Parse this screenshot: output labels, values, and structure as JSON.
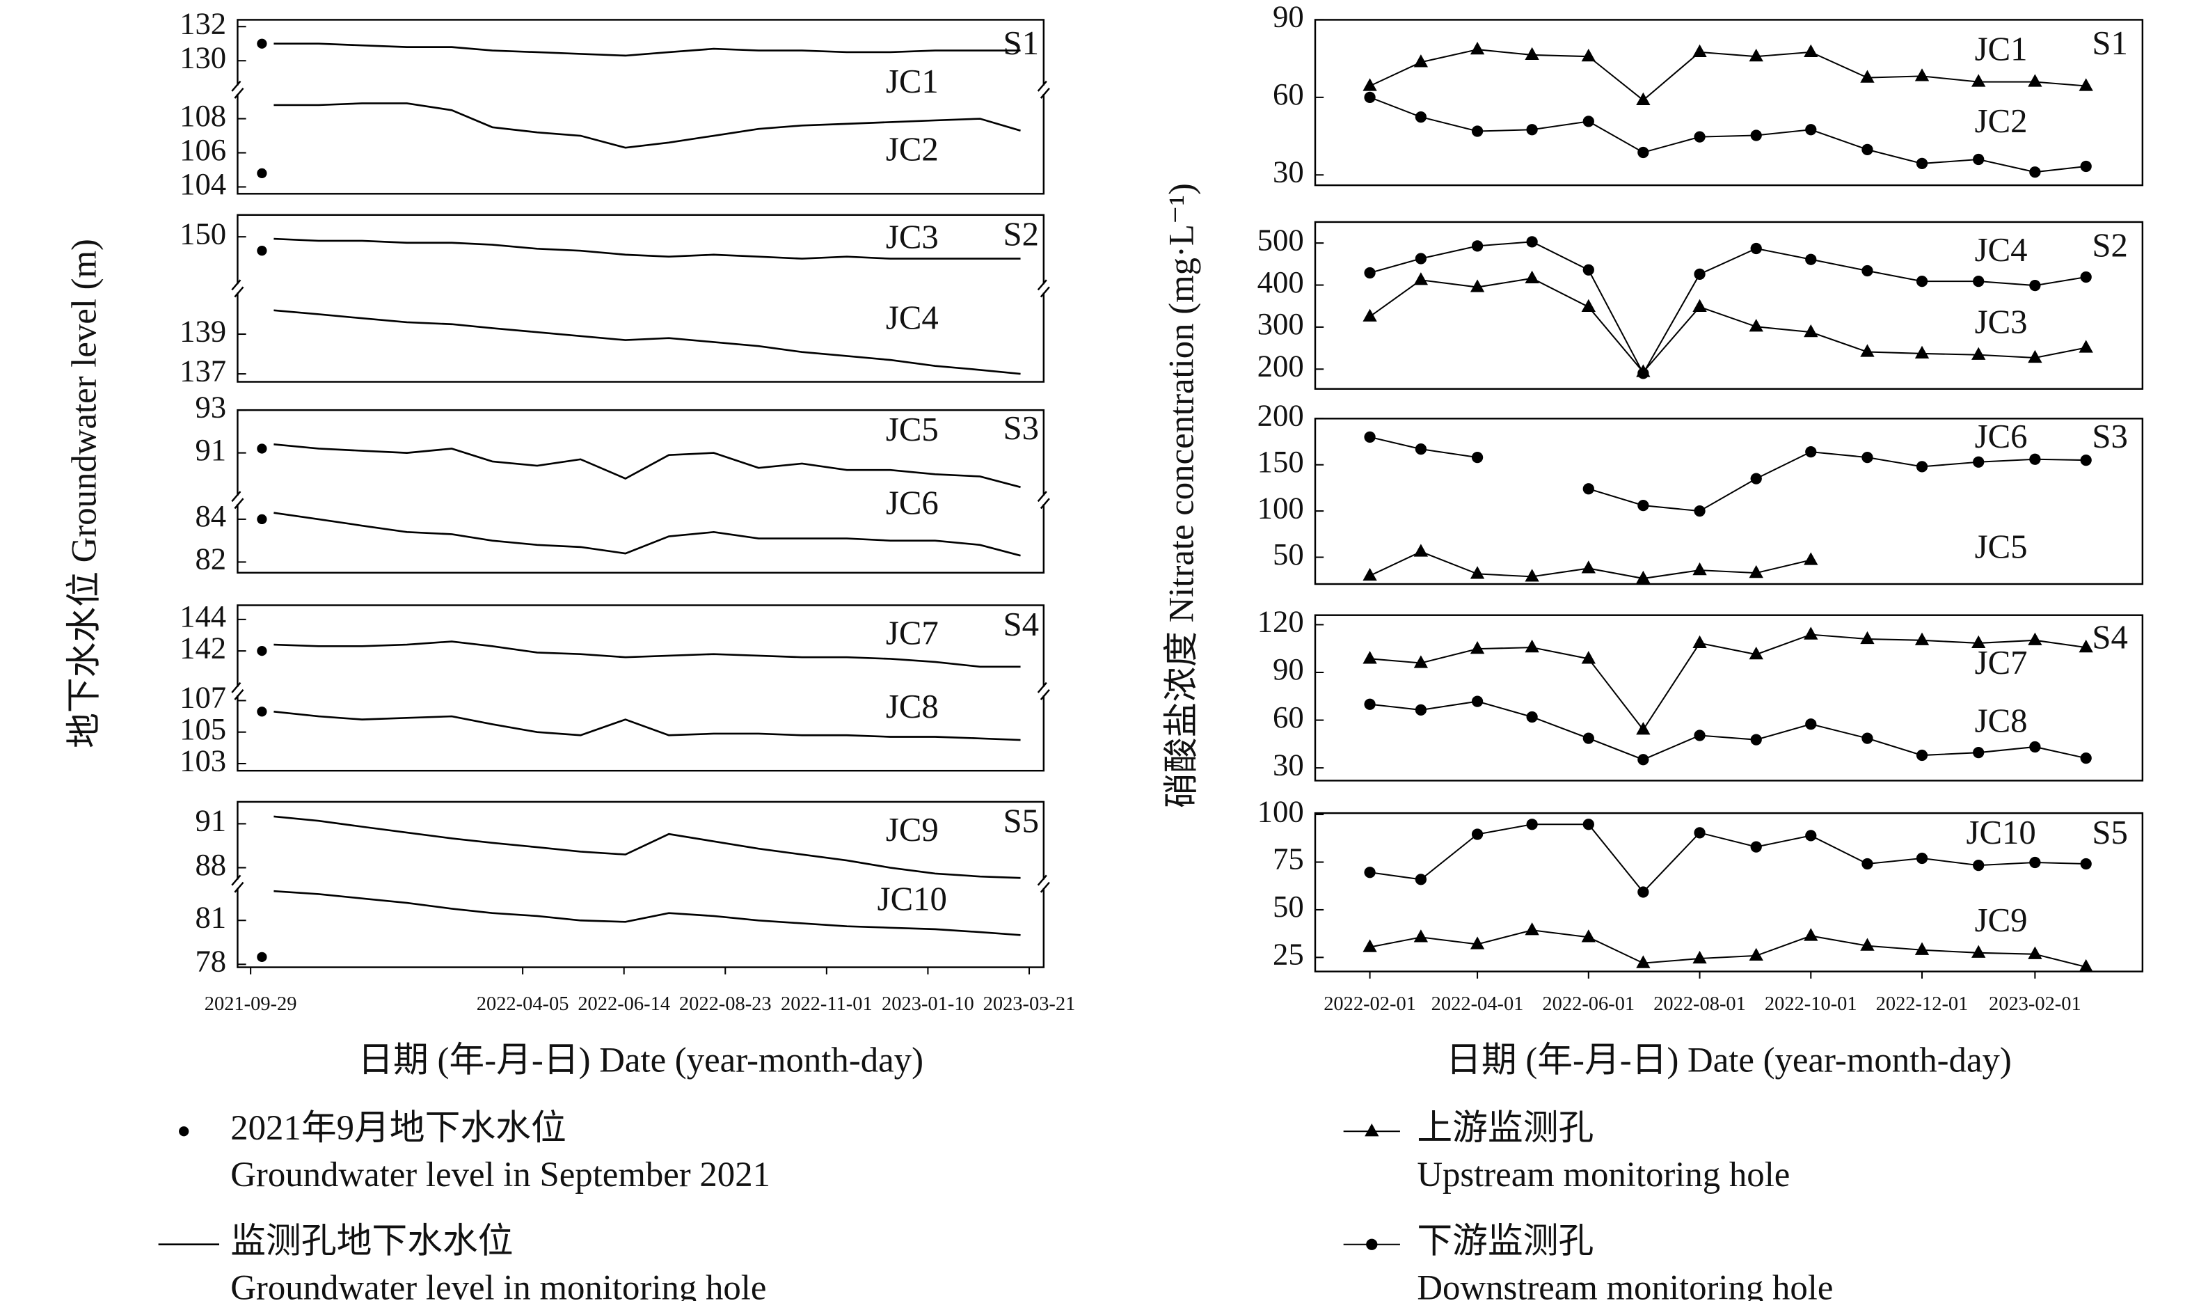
{
  "chart_data": [
    {
      "type": "broken-line",
      "y_label": "地下水水位 Groundwater level (m)",
      "x_label": "日期 (年-月-日) Date (year-month-day)",
      "xlim": [
        "2021-09-20",
        "2023-03-31"
      ],
      "xticks": [
        "2021-09-29",
        "2022-04-05",
        "2022-06-14",
        "2022-08-23",
        "2022-11-01",
        "2023-01-10",
        "2023-03-21"
      ],
      "x": [
        "2021-10-15",
        "2021-11-15",
        "2021-12-15",
        "2022-01-15",
        "2022-02-15",
        "2022-03-15",
        "2022-04-15",
        "2022-05-15",
        "2022-06-15",
        "2022-07-15",
        "2022-08-15",
        "2022-09-15",
        "2022-10-15",
        "2022-11-15",
        "2022-12-15",
        "2023-01-15",
        "2023-02-15",
        "2023-03-15"
      ],
      "color": "#000000",
      "panels": [
        {
          "label": "S1",
          "top": {
            "ylim": [
              128.3,
              132.4
            ],
            "yticks": [
              130,
              132
            ]
          },
          "bottom": {
            "ylim": [
              103.6,
              109.7
            ],
            "yticks": [
              104,
              106,
              108
            ]
          },
          "series": [
            {
              "name": "JC1",
              "segment": "top",
              "sept_2021": 131.0,
              "values": [
                131.0,
                131.0,
                130.9,
                130.8,
                130.8,
                130.6,
                130.5,
                130.4,
                130.3,
                130.5,
                130.7,
                130.6,
                130.6,
                130.5,
                130.5,
                130.6,
                130.6,
                130.6
              ]
            },
            {
              "name": "JC2",
              "segment": "bottom",
              "sept_2021": 104.8,
              "values": [
                108.8,
                108.8,
                108.9,
                108.9,
                108.5,
                107.5,
                107.2,
                107.0,
                106.3,
                106.6,
                107.0,
                107.4,
                107.6,
                107.7,
                107.8,
                107.9,
                108.0,
                107.3
              ]
            }
          ]
        },
        {
          "label": "S2",
          "top": {
            "ylim": [
              147.4,
              151.1
            ],
            "yticks": [
              150
            ]
          },
          "bottom": {
            "ylim": [
              136.6,
              141.3
            ],
            "yticks": [
              137,
              139
            ]
          },
          "series": [
            {
              "name": "JC3",
              "segment": "top",
              "sept_2021": 149.3,
              "values": [
                149.9,
                149.8,
                149.8,
                149.7,
                149.7,
                149.6,
                149.4,
                149.3,
                149.1,
                149.0,
                149.1,
                149.0,
                148.9,
                149.0,
                148.9,
                148.9,
                148.9,
                148.9
              ]
            },
            {
              "name": "JC4",
              "segment": "bottom",
              "values": [
                140.2,
                140.0,
                139.8,
                139.6,
                139.5,
                139.3,
                139.1,
                138.9,
                138.7,
                138.8,
                138.6,
                138.4,
                138.1,
                137.9,
                137.7,
                137.4,
                137.2,
                137.0
              ]
            }
          ]
        },
        {
          "label": "S3",
          "top": {
            "ylim": [
              88.8,
              93
            ],
            "yticks": [
              91,
              93
            ]
          },
          "bottom": {
            "ylim": [
              81.5,
              84.9
            ],
            "yticks": [
              82,
              84
            ]
          },
          "series": [
            {
              "name": "JC5",
              "segment": "top",
              "sept_2021": 91.2,
              "values": [
                91.4,
                91.2,
                91.1,
                91.0,
                91.2,
                90.6,
                90.4,
                90.7,
                89.8,
                90.9,
                91.0,
                90.3,
                90.5,
                90.2,
                90.2,
                90.0,
                89.9,
                89.4
              ]
            },
            {
              "name": "JC6",
              "segment": "bottom",
              "sept_2021": 84.0,
              "values": [
                84.3,
                84.0,
                83.7,
                83.4,
                83.3,
                83.0,
                82.8,
                82.7,
                82.4,
                83.2,
                83.4,
                83.1,
                83.1,
                83.1,
                83.0,
                83.0,
                82.8,
                82.3
              ]
            }
          ]
        },
        {
          "label": "S4",
          "top": {
            "ylim": [
              139.45,
              144.9
            ],
            "yticks": [
              142,
              144
            ]
          },
          "bottom": {
            "ylim": [
              102.55,
              107.6
            ],
            "yticks": [
              103,
              105,
              107
            ]
          },
          "series": [
            {
              "name": "JC7",
              "segment": "top",
              "sept_2021": 142.0,
              "values": [
                142.4,
                142.3,
                142.3,
                142.4,
                142.6,
                142.3,
                141.9,
                141.8,
                141.6,
                141.7,
                141.8,
                141.7,
                141.6,
                141.6,
                141.5,
                141.3,
                141.0,
                141.0
              ]
            },
            {
              "name": "JC8",
              "segment": "bottom",
              "sept_2021": 106.3,
              "values": [
                106.3,
                106.0,
                105.8,
                105.9,
                106.0,
                105.5,
                105.0,
                104.8,
                105.8,
                104.8,
                104.9,
                104.9,
                104.8,
                104.8,
                104.7,
                104.7,
                104.6,
                104.5
              ]
            }
          ]
        },
        {
          "label": "S5",
          "top": {
            "ylim": [
              86.9,
              92.5
            ],
            "yticks": [
              88,
              91
            ]
          },
          "bottom": {
            "ylim": [
              77.8,
              83.5
            ],
            "yticks": [
              78,
              81
            ]
          },
          "series": [
            {
              "name": "JC9",
              "segment": "top",
              "values": [
                91.5,
                91.2,
                90.8,
                90.4,
                90.0,
                89.7,
                89.4,
                89.1,
                88.9,
                90.3,
                89.8,
                89.3,
                88.9,
                88.5,
                88.0,
                87.6,
                87.4,
                87.3
              ]
            },
            {
              "name": "JC10",
              "segment": "bottom",
              "sept_2021": 78.5,
              "values": [
                83.0,
                82.8,
                82.5,
                82.2,
                81.8,
                81.5,
                81.3,
                81.0,
                80.9,
                81.5,
                81.3,
                81.0,
                80.8,
                80.6,
                80.5,
                80.4,
                80.2,
                80.0
              ]
            }
          ]
        }
      ],
      "legend": [
        {
          "marker": "dot",
          "lines": [
            "2021年9月地下水水位",
            "Groundwater level in September 2021"
          ]
        },
        {
          "marker": "line",
          "lines": [
            "监测孔地下水水位",
            "Groundwater level in monitoring hole"
          ]
        }
      ]
    },
    {
      "type": "line",
      "y_label": "硝酸盐浓度 Nitrate concentration (mg·L⁻¹)",
      "x_label": "日期 (年-月-日) Date (year-month-day)",
      "xlim": [
        "2022-01-02",
        "2023-04-01"
      ],
      "xticks": [
        "2022-02-01",
        "2022-04-01",
        "2022-06-01",
        "2022-08-01",
        "2022-10-01",
        "2022-12-01",
        "2023-02-01"
      ],
      "x": [
        "2022-02-01",
        "2022-03-01",
        "2022-04-01",
        "2022-05-01",
        "2022-06-01",
        "2022-07-01",
        "2022-08-01",
        "2022-09-01",
        "2022-10-01",
        "2022-11-01",
        "2022-12-01",
        "2023-01-01",
        "2023-02-01",
        "2023-03-01"
      ],
      "color": "#000000",
      "panels": [
        {
          "label": "S1",
          "ylim": [
            26,
            90
          ],
          "yticks": [
            30,
            60,
            90
          ],
          "series": [
            {
              "name": "JC1",
              "marker": "triangle",
              "values": [
                64.4,
                73.6,
                78.5,
                76.4,
                75.8,
                58.9,
                77.5,
                75.8,
                77.5,
                67.6,
                68.2,
                66,
                66,
                64.4
              ]
            },
            {
              "name": "JC2",
              "marker": "circle",
              "values": [
                60,
                52.4,
                46.9,
                47.5,
                50.7,
                38.7,
                44.7,
                45.3,
                47.5,
                39.8,
                34.4,
                36,
                31.1,
                33.3
              ]
            }
          ]
        },
        {
          "label": "S2",
          "ylim": [
            153,
            550
          ],
          "yticks": [
            200,
            300,
            400,
            500
          ],
          "series": [
            {
              "name": "JC3",
              "marker": "triangle",
              "values": [
                325,
                412,
                395,
                416,
                348,
                193,
                348,
                301,
                288,
                241,
                237,
                234,
                227,
                251
              ]
            },
            {
              "name": "JC4",
              "marker": "circle",
              "values": [
                429,
                463,
                493,
                503,
                436,
                190,
                426,
                487,
                461,
                434,
                409,
                409,
                399,
                419
              ]
            }
          ]
        },
        {
          "label": "S3",
          "ylim": [
            21,
            200
          ],
          "yticks": [
            50,
            100,
            150,
            200
          ],
          "series": [
            {
              "name": "JC5",
              "marker": "triangle",
              "values": [
                30,
                56,
                32,
                29,
                38,
                27,
                36,
                33,
                47,
                null,
                null,
                null,
                null,
                null
              ]
            },
            {
              "name": "JC6",
              "marker": "circle",
              "values": [
                180,
                167,
                158,
                null,
                124,
                106,
                100,
                135,
                164,
                158,
                148,
                153,
                156,
                155
              ]
            }
          ]
        },
        {
          "label": "S4",
          "ylim": [
            22,
            126
          ],
          "yticks": [
            30,
            60,
            90,
            120
          ],
          "series": [
            {
              "name": "JC7",
              "marker": "triangle",
              "values": [
                98.6,
                95.9,
                104.8,
                105.7,
                98.6,
                54,
                108.4,
                101.3,
                113.8,
                111,
                110.2,
                108.4,
                110.2,
                105.7
              ]
            },
            {
              "name": "JC8",
              "marker": "circle",
              "values": [
                70,
                66.4,
                71.8,
                62,
                48.6,
                35.2,
                50.4,
                47.7,
                57.5,
                48.6,
                37.9,
                39.6,
                43.2,
                36.1
              ]
            }
          ]
        },
        {
          "label": "S5",
          "ylim": [
            17.6,
            100.7
          ],
          "yticks": [
            25,
            50,
            75,
            100
          ],
          "series": [
            {
              "name": "JC9",
              "marker": "triangle",
              "values": [
                30.4,
                35.6,
                31.9,
                39.3,
                35.6,
                22,
                24.4,
                25.9,
                36.3,
                31.1,
                28.9,
                27.4,
                26.7,
                20
              ]
            },
            {
              "name": "JC10",
              "marker": "circle",
              "values": [
                69.6,
                65.9,
                89.6,
                94.8,
                94.8,
                59.3,
                90.4,
                83,
                88.9,
                74.1,
                77,
                73.3,
                74.8,
                74.1
              ]
            }
          ]
        }
      ],
      "legend": [
        {
          "marker": "triangle",
          "lines": [
            "上游监测孔",
            "Upstream monitoring hole"
          ]
        },
        {
          "marker": "circle",
          "lines": [
            "下游监测孔",
            "Downstream monitoring hole"
          ]
        }
      ]
    }
  ]
}
